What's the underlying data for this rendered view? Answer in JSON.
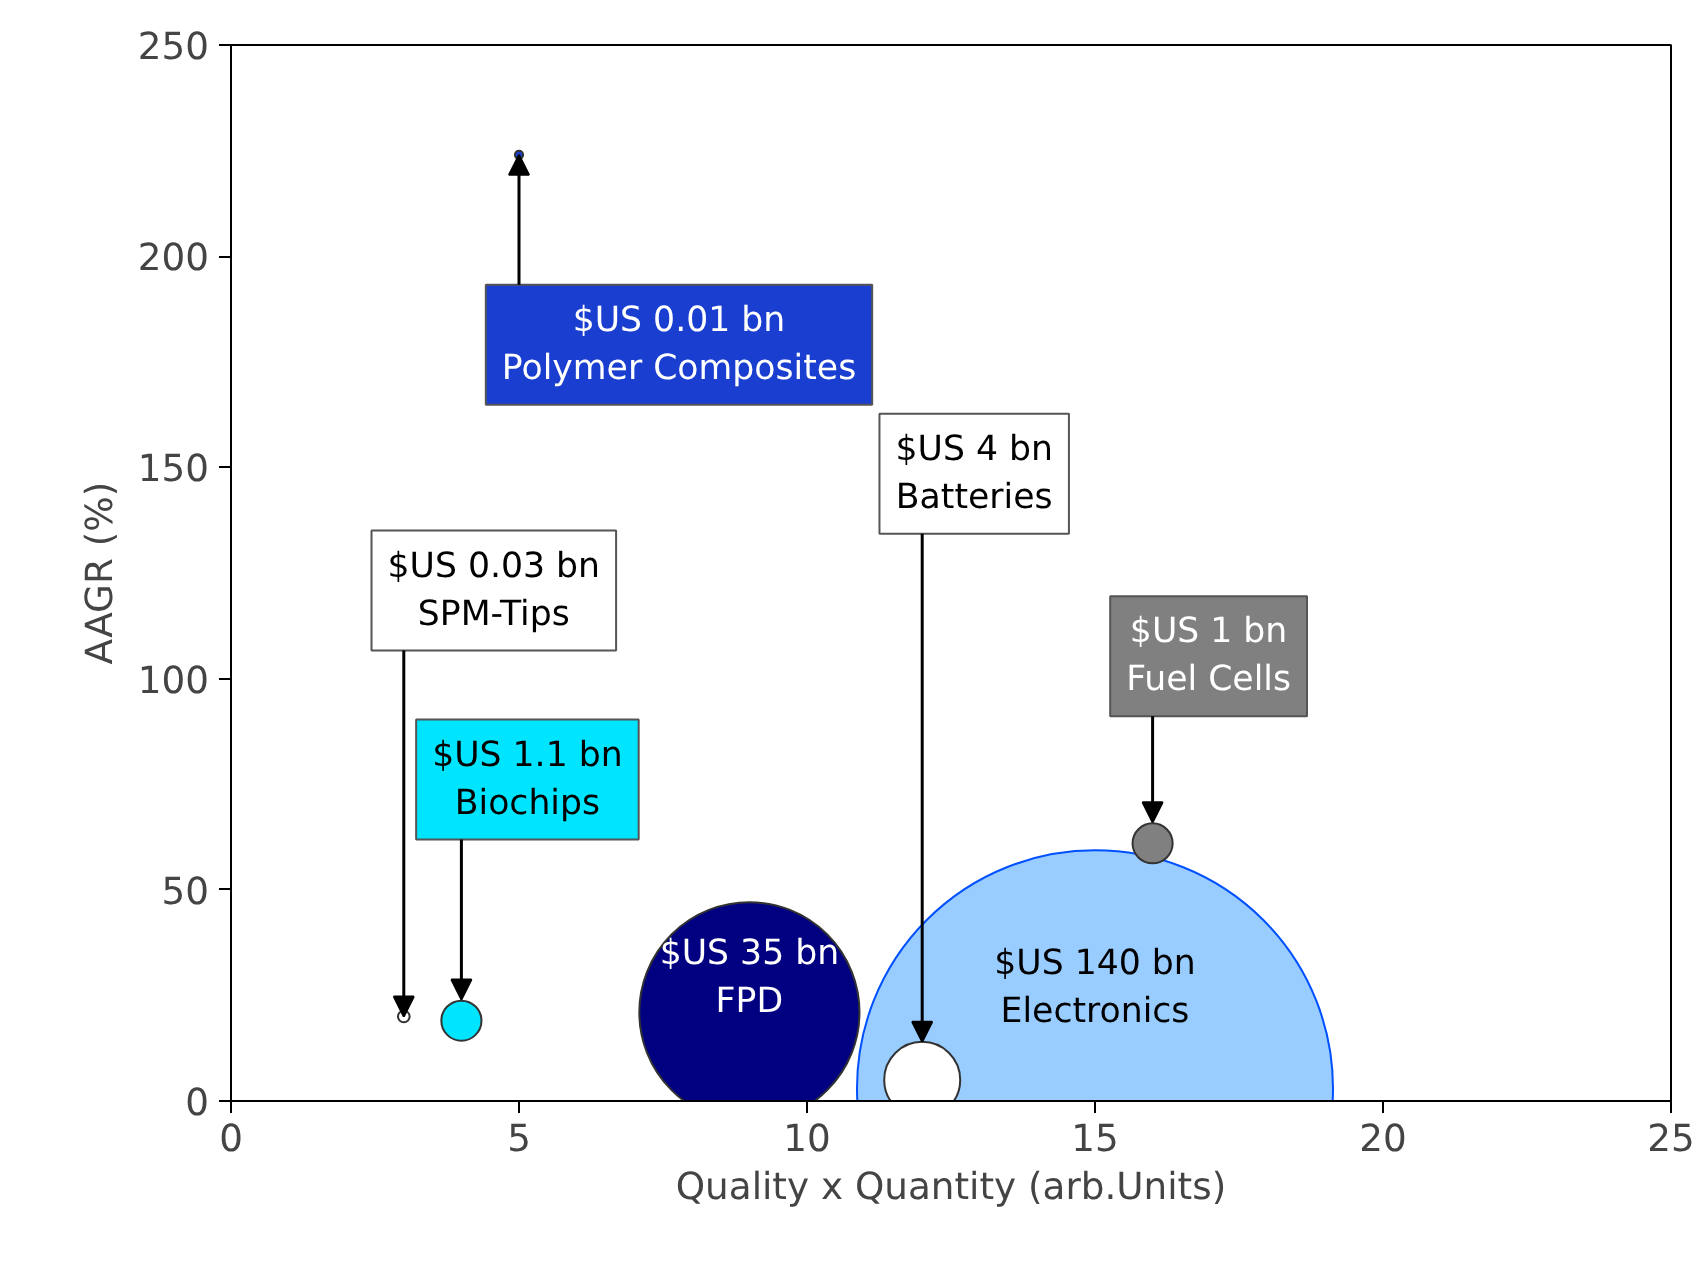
{
  "chart_data": {
    "type": "bubble",
    "xlabel": "Quality x Quantity (arb.Units)",
    "ylabel": "AAGR (%)",
    "x": [
      5,
      3,
      4,
      9,
      12,
      15,
      16
    ],
    "values": [
      224,
      20,
      19,
      21,
      5,
      3,
      61
    ],
    "sizes": [
      0.0003,
      0.0006,
      0.0071,
      0.214,
      0.0255,
      1,
      0.0071
    ],
    "colors": [
      "#1a3fd0",
      "#ffffff",
      "#00e5ff",
      "#000080",
      "#ffffff",
      "#99ccff",
      "#808080"
    ],
    "xlim": [
      0,
      25
    ],
    "xticks": [
      0,
      5,
      10,
      15,
      20,
      25
    ],
    "ylim": [
      0,
      250
    ],
    "yticks": [
      0,
      50,
      100,
      150,
      200,
      250
    ],
    "grid": false,
    "annotations": [
      {
        "text": "$US 0.01 bn\nPolymer Composites",
        "x": 5,
        "y": 224
      },
      {
        "text": "$US 0.03 bn\nSPM-Tips",
        "x": 3,
        "y": 20
      },
      {
        "text": "$US 1.1 bn\nBiochips",
        "x": 4,
        "y": 24
      },
      {
        "text": "$US 35 bn\nFPD",
        "x": 9,
        "y": 21
      },
      {
        "text": "$US 4 bn\nBatteries",
        "x": 12,
        "y": 14
      },
      {
        "text": "$US 140 bn\nElectronics",
        "x": 15,
        "y": 3
      },
      {
        "text": "$US 1 bn\nFuel Cells",
        "x": 16,
        "y": 66
      }
    ]
  }
}
